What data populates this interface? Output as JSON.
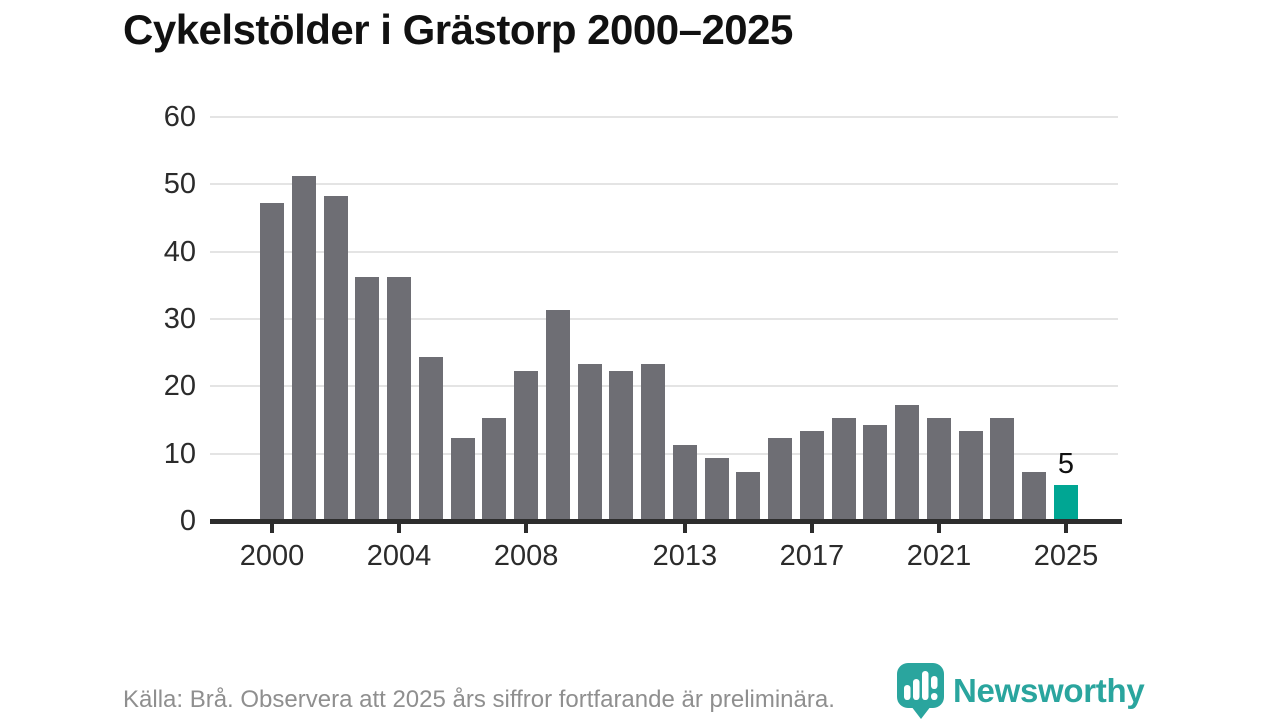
{
  "title": "Cykelstölder i Grästorp 2000–2025",
  "chart_data": {
    "type": "bar",
    "title": "Cykelstölder i Grästorp 2000–2025",
    "x": [
      2000,
      2001,
      2002,
      2003,
      2004,
      2005,
      2006,
      2007,
      2008,
      2009,
      2010,
      2011,
      2012,
      2013,
      2014,
      2015,
      2016,
      2017,
      2018,
      2019,
      2020,
      2021,
      2022,
      2023,
      2024,
      2025
    ],
    "values": [
      47,
      51,
      48,
      36,
      36,
      24,
      12,
      15,
      22,
      31,
      23,
      22,
      23,
      11,
      9,
      7,
      12,
      13,
      15,
      14,
      17,
      15,
      13,
      15,
      7,
      5
    ],
    "highlight_year": 2025,
    "bar_color": "#6e6e74",
    "highlight_color": "#00a693",
    "xlabel": "",
    "ylabel": "",
    "ylim": [
      0,
      60
    ],
    "yticks": [
      0,
      10,
      20,
      30,
      40,
      50,
      60
    ],
    "xticks": [
      2000,
      2004,
      2008,
      2013,
      2017,
      2021,
      2025
    ],
    "grid": true,
    "legend": false,
    "bar_label": {
      "year": 2025,
      "text": "5"
    }
  },
  "footer": {
    "source": "Källa: Brå. Observera att 2025 års siffror fortfarande är preliminära."
  },
  "branding": {
    "name": "Newsworthy",
    "color": "#2aa59e",
    "icon": "newsworthy-map-marker-chart-icon"
  }
}
